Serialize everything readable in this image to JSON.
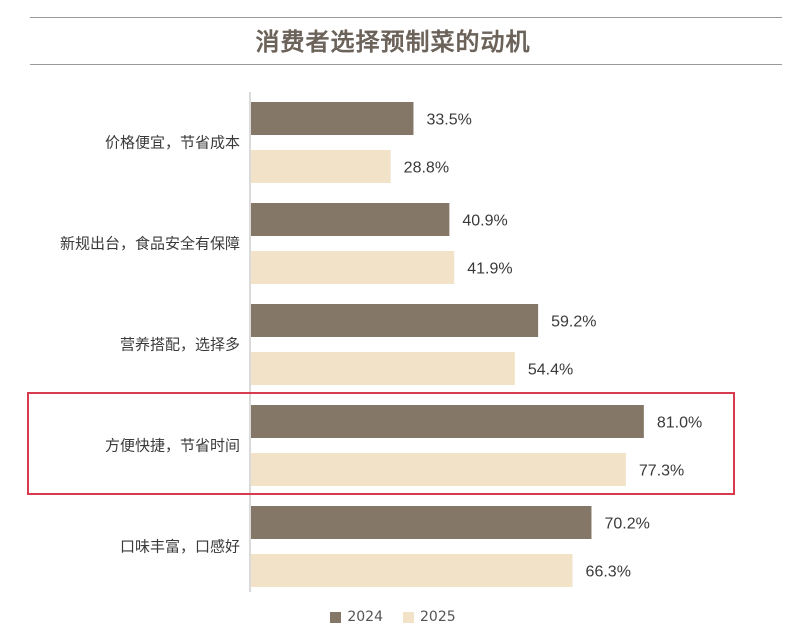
{
  "chart_data": {
    "type": "bar",
    "orientation": "horizontal",
    "title": "消费者选择预制菜的动机",
    "categories": [
      "价格便宜，节省成本",
      "新规出台，食品安全有保障",
      "营养搭配，选择多",
      "方便快捷，节省时间",
      "口味丰富，口感好"
    ],
    "series": [
      {
        "name": "2024",
        "values": [
          33.5,
          40.9,
          59.2,
          81.0,
          70.2
        ],
        "labels": [
          "33.5%",
          "40.9%",
          "59.2%",
          "81.0%",
          "70.2%"
        ],
        "color": "#857767"
      },
      {
        "name": "2025",
        "values": [
          28.8,
          41.9,
          54.4,
          77.3,
          66.3
        ],
        "labels": [
          "28.8%",
          "41.9%",
          "54.4%",
          "77.3%",
          "66.3%"
        ],
        "color": "#f2e3c8"
      }
    ],
    "xlim": [
      0,
      100
    ],
    "highlighted_category": "方便快捷，节省时间",
    "highlight_color": "#d83a4e",
    "grid": false,
    "legend_position": "bottom"
  }
}
